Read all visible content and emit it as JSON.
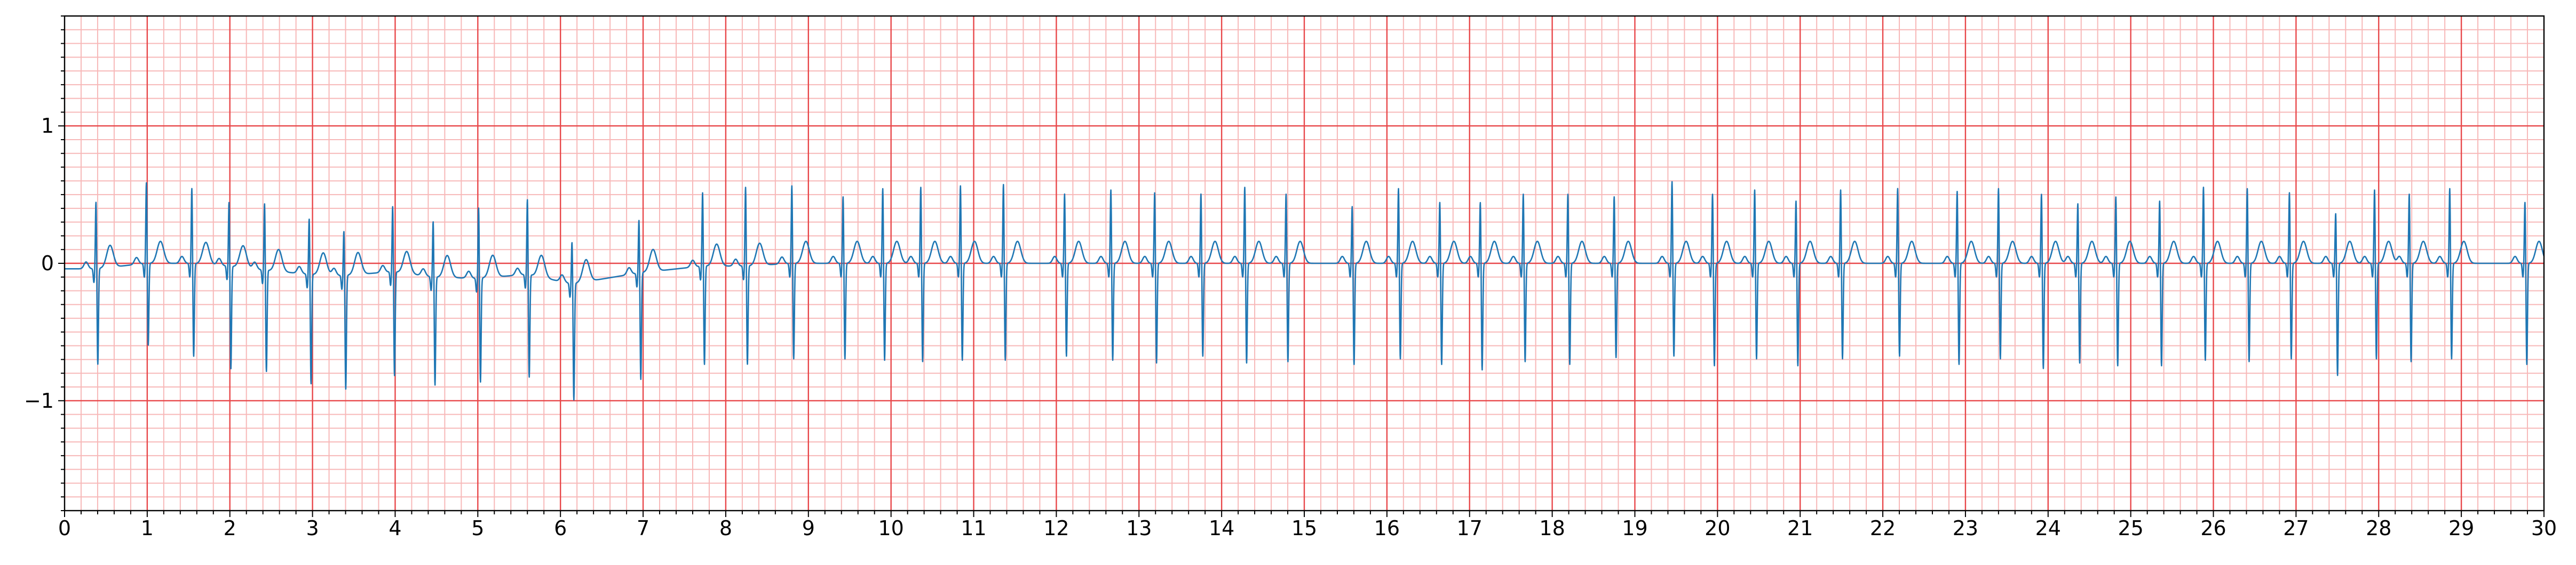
{
  "chart_data": {
    "type": "line",
    "title": "",
    "xlabel": "",
    "ylabel": "",
    "xlim": [
      0,
      30
    ],
    "ylim": [
      -1.8,
      1.8
    ],
    "x_ticks": [
      0,
      1,
      2,
      3,
      4,
      5,
      6,
      7,
      8,
      9,
      10,
      11,
      12,
      13,
      14,
      15,
      16,
      17,
      18,
      19,
      20,
      21,
      22,
      23,
      24,
      25,
      26,
      27,
      28,
      29,
      30
    ],
    "x_tick_labels": [
      "0",
      "1",
      "2",
      "3",
      "4",
      "5",
      "6",
      "7",
      "8",
      "9",
      "10",
      "11",
      "12",
      "13",
      "14",
      "15",
      "16",
      "17",
      "18",
      "19",
      "20",
      "21",
      "22",
      "23",
      "24",
      "25",
      "26",
      "27",
      "28",
      "29",
      "30"
    ],
    "y_ticks": [
      -1,
      0,
      1
    ],
    "y_tick_labels": [
      "−1",
      "0",
      "1"
    ],
    "x_minor_step": 0.2,
    "y_minor_step": 0.1,
    "grid": {
      "major": true,
      "minor": true,
      "major_color": "#e8474a",
      "minor_color": "#f7b8b8"
    },
    "line_color": "#1f77b4",
    "series": [
      {
        "beats": [
          {
            "t": 0.38,
            "r": 0.5,
            "s": -0.7,
            "off": -0.04
          },
          {
            "t": 0.99,
            "r": 0.6,
            "s": -0.6,
            "off": 0.0
          },
          {
            "t": 1.54,
            "r": 0.56,
            "s": -0.68,
            "off": 0.0
          },
          {
            "t": 1.99,
            "r": 0.48,
            "s": -0.75,
            "off": -0.02
          },
          {
            "t": 2.42,
            "r": 0.5,
            "s": -0.74,
            "off": -0.05
          },
          {
            "t": 2.96,
            "r": 0.42,
            "s": -0.8,
            "off": -0.08
          },
          {
            "t": 3.38,
            "r": 0.34,
            "s": -0.83,
            "off": -0.09
          },
          {
            "t": 3.97,
            "r": 0.49,
            "s": -0.76,
            "off": -0.06
          },
          {
            "t": 4.46,
            "r": 0.42,
            "s": -0.79,
            "off": -0.1
          },
          {
            "t": 5.01,
            "r": 0.53,
            "s": -0.76,
            "off": -0.11
          },
          {
            "t": 5.6,
            "r": 0.56,
            "s": -0.75,
            "off": -0.08
          },
          {
            "t": 6.14,
            "r": 0.32,
            "s": -0.85,
            "off": -0.15
          },
          {
            "t": 6.95,
            "r": 0.4,
            "s": -0.78,
            "off": -0.07
          },
          {
            "t": 7.72,
            "r": 0.55,
            "s": -0.72,
            "off": -0.02
          },
          {
            "t": 8.24,
            "r": 0.59,
            "s": -0.72,
            "off": -0.02
          },
          {
            "t": 8.8,
            "r": 0.58,
            "s": -0.7,
            "off": 0.0
          },
          {
            "t": 9.42,
            "r": 0.5,
            "s": -0.7,
            "off": 0.0
          },
          {
            "t": 9.9,
            "r": 0.56,
            "s": -0.71,
            "off": 0.0
          },
          {
            "t": 10.36,
            "r": 0.57,
            "s": -0.72,
            "off": 0.0
          },
          {
            "t": 10.84,
            "r": 0.58,
            "s": -0.71,
            "off": 0.0
          },
          {
            "t": 11.36,
            "r": 0.59,
            "s": -0.71,
            "off": 0.0
          },
          {
            "t": 12.1,
            "r": 0.52,
            "s": -0.68,
            "off": 0.0
          },
          {
            "t": 12.66,
            "r": 0.55,
            "s": -0.71,
            "off": 0.0
          },
          {
            "t": 13.19,
            "r": 0.53,
            "s": -0.73,
            "off": 0.0
          },
          {
            "t": 13.75,
            "r": 0.52,
            "s": -0.68,
            "off": 0.0
          },
          {
            "t": 14.28,
            "r": 0.57,
            "s": -0.73,
            "off": 0.0
          },
          {
            "t": 14.78,
            "r": 0.52,
            "s": -0.72,
            "off": 0.0
          },
          {
            "t": 15.58,
            "r": 0.43,
            "s": -0.74,
            "off": 0.0
          },
          {
            "t": 16.14,
            "r": 0.56,
            "s": -0.7,
            "off": 0.0
          },
          {
            "t": 16.64,
            "r": 0.46,
            "s": -0.74,
            "off": 0.0
          },
          {
            "t": 17.13,
            "r": 0.46,
            "s": -0.78,
            "off": 0.0
          },
          {
            "t": 17.65,
            "r": 0.52,
            "s": -0.72,
            "off": 0.0
          },
          {
            "t": 18.19,
            "r": 0.52,
            "s": -0.74,
            "off": 0.0
          },
          {
            "t": 18.75,
            "r": 0.5,
            "s": -0.69,
            "off": 0.0
          },
          {
            "t": 19.45,
            "r": 0.61,
            "s": -0.68,
            "off": 0.0
          },
          {
            "t": 19.94,
            "r": 0.52,
            "s": -0.75,
            "off": 0.0
          },
          {
            "t": 20.45,
            "r": 0.55,
            "s": -0.7,
            "off": 0.0
          },
          {
            "t": 20.95,
            "r": 0.47,
            "s": -0.75,
            "off": 0.0
          },
          {
            "t": 21.49,
            "r": 0.55,
            "s": -0.7,
            "off": 0.0
          },
          {
            "t": 22.18,
            "r": 0.56,
            "s": -0.68,
            "off": 0.0
          },
          {
            "t": 22.9,
            "r": 0.54,
            "s": -0.74,
            "off": 0.0
          },
          {
            "t": 23.4,
            "r": 0.56,
            "s": -0.7,
            "off": 0.0
          },
          {
            "t": 23.92,
            "r": 0.52,
            "s": -0.77,
            "off": 0.0
          },
          {
            "t": 24.36,
            "r": 0.45,
            "s": -0.73,
            "off": 0.0
          },
          {
            "t": 24.82,
            "r": 0.5,
            "s": -0.75,
            "off": 0.0
          },
          {
            "t": 25.35,
            "r": 0.47,
            "s": -0.75,
            "off": 0.0
          },
          {
            "t": 25.88,
            "r": 0.57,
            "s": -0.71,
            "off": 0.0
          },
          {
            "t": 26.41,
            "r": 0.56,
            "s": -0.72,
            "off": 0.0
          },
          {
            "t": 26.92,
            "r": 0.53,
            "s": -0.7,
            "off": 0.0
          },
          {
            "t": 27.48,
            "r": 0.38,
            "s": -0.82,
            "off": 0.0
          },
          {
            "t": 27.95,
            "r": 0.55,
            "s": -0.7,
            "off": 0.0
          },
          {
            "t": 28.37,
            "r": 0.52,
            "s": -0.72,
            "off": 0.0
          },
          {
            "t": 28.86,
            "r": 0.56,
            "s": -0.7,
            "off": 0.0
          },
          {
            "t": 29.77,
            "r": 0.46,
            "s": -0.74,
            "off": 0.0
          }
        ]
      }
    ]
  }
}
